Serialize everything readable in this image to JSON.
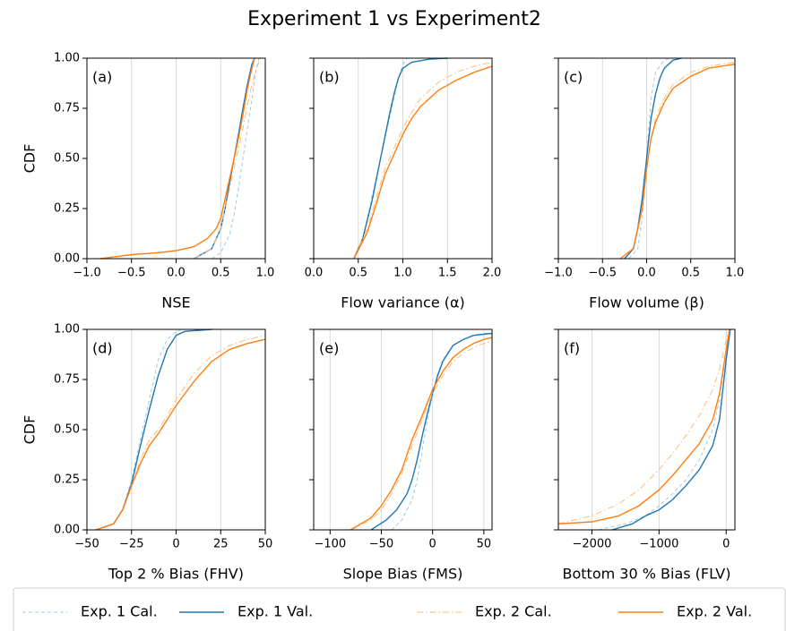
{
  "title": "Experiment 1 vs Experiment2",
  "chart_data": [
    {
      "type": "line",
      "label": "(a)",
      "xlabel": "NSE",
      "ylabel": "CDF",
      "show_ytick_labels": true,
      "grid": "x",
      "xlim": [
        -1,
        1
      ],
      "ylim": [
        0,
        1
      ],
      "xticks": [
        {
          "value": -1,
          "label": "−1.0"
        },
        {
          "value": -0.5,
          "label": "−0.5"
        },
        {
          "value": 0,
          "label": "0.0"
        },
        {
          "value": 0.5,
          "label": "0.5"
        },
        {
          "value": 1,
          "label": "1.0"
        }
      ],
      "yticks": [
        {
          "value": 0,
          "label": "0.00"
        },
        {
          "value": 0.25,
          "label": "0.25"
        },
        {
          "value": 0.5,
          "label": "0.50"
        },
        {
          "value": 0.75,
          "label": "0.75"
        },
        {
          "value": 1,
          "label": "1.00"
        }
      ],
      "series": [
        {
          "name": "Exp. 1 Cal.",
          "color": "#9ecae1",
          "linestyle": "dashed",
          "x": [
            0.4,
            0.5,
            0.6,
            0.65,
            0.7,
            0.75,
            0.8,
            0.85,
            0.9,
            0.93
          ],
          "values": [
            0,
            0.03,
            0.12,
            0.22,
            0.35,
            0.5,
            0.65,
            0.8,
            0.95,
            1
          ]
        },
        {
          "name": "Exp. 1 Val.",
          "color": "#1f77b4",
          "linestyle": "solid",
          "x": [
            0.2,
            0.4,
            0.5,
            0.55,
            0.6,
            0.65,
            0.7,
            0.75,
            0.8,
            0.85,
            0.88
          ],
          "values": [
            0,
            0.05,
            0.15,
            0.25,
            0.38,
            0.5,
            0.62,
            0.75,
            0.87,
            0.97,
            1
          ]
        },
        {
          "name": "Exp. 2 Cal.",
          "color": "#ffbb78",
          "linestyle": "dashdot",
          "x": [
            0.2,
            0.4,
            0.5,
            0.6,
            0.7,
            0.75,
            0.8,
            0.85,
            0.9,
            0.95
          ],
          "values": [
            0,
            0.05,
            0.15,
            0.35,
            0.55,
            0.65,
            0.77,
            0.87,
            0.95,
            1
          ]
        },
        {
          "name": "Exp. 2 Val.",
          "color": "#ff7f0e",
          "linestyle": "solid",
          "x": [
            -0.85,
            -0.5,
            -0.2,
            0,
            0.2,
            0.35,
            0.45,
            0.5,
            0.55,
            0.6,
            0.65,
            0.7,
            0.75,
            0.8,
            0.85,
            0.88
          ],
          "values": [
            0,
            0.02,
            0.03,
            0.04,
            0.06,
            0.1,
            0.15,
            0.2,
            0.3,
            0.4,
            0.5,
            0.6,
            0.72,
            0.85,
            0.95,
            1
          ]
        }
      ]
    },
    {
      "type": "line",
      "label": "(b)",
      "xlabel": "Flow variance (α)",
      "show_ytick_labels": false,
      "grid": "x",
      "xlim": [
        0,
        2
      ],
      "ylim": [
        0,
        1
      ],
      "xticks": [
        {
          "value": 0,
          "label": "0.0"
        },
        0.5,
        {
          "value": 1,
          "label": "1.0"
        },
        1.5,
        {
          "value": 2,
          "label": "2.0"
        }
      ],
      "yticks": [
        0,
        0.25,
        0.5,
        0.75,
        1
      ],
      "series": [
        {
          "name": "Exp. 1 Cal.",
          "color": "#9ecae1",
          "linestyle": "dashed",
          "x": [
            0.45,
            0.55,
            0.65,
            0.75,
            0.85,
            0.9,
            0.95,
            1.0,
            1.05
          ],
          "values": [
            0,
            0.1,
            0.3,
            0.5,
            0.7,
            0.8,
            0.9,
            0.97,
            1
          ]
        },
        {
          "name": "Exp. 1 Val.",
          "color": "#1f77b4",
          "linestyle": "solid",
          "x": [
            0.45,
            0.55,
            0.65,
            0.75,
            0.85,
            0.9,
            0.95,
            1.0,
            1.1,
            1.3,
            1.5
          ],
          "values": [
            0,
            0.1,
            0.28,
            0.5,
            0.72,
            0.82,
            0.9,
            0.95,
            0.98,
            0.995,
            1
          ]
        },
        {
          "name": "Exp. 2 Cal.",
          "color": "#ffbb78",
          "linestyle": "dashdot",
          "x": [
            0.45,
            0.6,
            0.7,
            0.8,
            0.9,
            1.0,
            1.1,
            1.2,
            1.4,
            1.6,
            1.8,
            2.0
          ],
          "values": [
            0,
            0.15,
            0.3,
            0.45,
            0.55,
            0.65,
            0.73,
            0.8,
            0.88,
            0.93,
            0.96,
            0.98
          ]
        },
        {
          "name": "Exp. 2 Val.",
          "color": "#ff7f0e",
          "linestyle": "solid",
          "x": [
            0.45,
            0.6,
            0.7,
            0.8,
            0.9,
            1.0,
            1.1,
            1.2,
            1.4,
            1.6,
            1.8,
            2.0
          ],
          "values": [
            0,
            0.13,
            0.27,
            0.42,
            0.52,
            0.62,
            0.7,
            0.76,
            0.84,
            0.89,
            0.93,
            0.96
          ]
        }
      ]
    },
    {
      "type": "line",
      "label": "(c)",
      "xlabel": "Flow volume (β)",
      "show_ytick_labels": false,
      "grid": "x",
      "xlim": [
        -1,
        1
      ],
      "ylim": [
        0,
        1
      ],
      "xticks": [
        {
          "value": -1,
          "label": "−1.0"
        },
        {
          "value": -0.5,
          "label": "−0.5"
        },
        {
          "value": 0,
          "label": "0.0"
        },
        0.5,
        {
          "value": 1,
          "label": "1.0"
        }
      ],
      "yticks": [
        0,
        0.25,
        0.5,
        0.75,
        1
      ],
      "series": [
        {
          "name": "Exp. 1 Cal.",
          "color": "#9ecae1",
          "linestyle": "dashed",
          "x": [
            -0.2,
            -0.1,
            -0.05,
            0,
            0.05,
            0.1,
            0.2,
            0.3
          ],
          "values": [
            0,
            0.05,
            0.2,
            0.5,
            0.8,
            0.93,
            0.99,
            1
          ]
        },
        {
          "name": "Exp. 1 Val.",
          "color": "#1f77b4",
          "linestyle": "solid",
          "x": [
            -0.25,
            -0.15,
            -0.1,
            -0.05,
            0,
            0.05,
            0.1,
            0.15,
            0.2,
            0.3,
            0.4
          ],
          "values": [
            0,
            0.05,
            0.15,
            0.3,
            0.5,
            0.7,
            0.82,
            0.9,
            0.95,
            0.99,
            1
          ]
        },
        {
          "name": "Exp. 2 Cal.",
          "color": "#ffbb78",
          "linestyle": "dashdot",
          "x": [
            -0.3,
            -0.15,
            -0.05,
            0,
            0.05,
            0.1,
            0.2,
            0.3,
            0.5,
            0.7,
            1.0
          ],
          "values": [
            0,
            0.05,
            0.25,
            0.45,
            0.6,
            0.7,
            0.8,
            0.87,
            0.93,
            0.96,
            0.98
          ]
        },
        {
          "name": "Exp. 2 Val.",
          "color": "#ff7f0e",
          "linestyle": "solid",
          "x": [
            -0.3,
            -0.15,
            -0.05,
            0,
            0.05,
            0.1,
            0.2,
            0.3,
            0.5,
            0.7,
            1.0
          ],
          "values": [
            0,
            0.05,
            0.25,
            0.45,
            0.6,
            0.68,
            0.78,
            0.85,
            0.91,
            0.95,
            0.97
          ]
        }
      ]
    },
    {
      "type": "line",
      "label": "(d)",
      "xlabel": "Top 2 % Bias (FHV)",
      "ylabel": "CDF",
      "show_ytick_labels": true,
      "grid": "x",
      "xlim": [
        -50,
        50
      ],
      "ylim": [
        0,
        1
      ],
      "xticks": [
        {
          "value": -50,
          "label": "−50"
        },
        {
          "value": -25,
          "label": "−25"
        },
        0,
        25,
        50
      ],
      "yticks": [
        {
          "value": 0,
          "label": "0.00"
        },
        {
          "value": 0.25,
          "label": "0.25"
        },
        {
          "value": 0.5,
          "label": "0.50"
        },
        {
          "value": 0.75,
          "label": "0.75"
        },
        {
          "value": 1,
          "label": "1.00"
        }
      ],
      "series": [
        {
          "name": "Exp. 1 Cal.",
          "color": "#9ecae1",
          "linestyle": "dashed",
          "x": [
            -45,
            -35,
            -30,
            -25,
            -20,
            -15,
            -10,
            -5,
            0,
            5
          ],
          "values": [
            0,
            0.03,
            0.1,
            0.25,
            0.45,
            0.65,
            0.85,
            0.95,
            0.99,
            1
          ]
        },
        {
          "name": "Exp. 1 Val.",
          "color": "#1f77b4",
          "linestyle": "solid",
          "x": [
            -45,
            -35,
            -30,
            -25,
            -20,
            -15,
            -10,
            -5,
            0,
            5,
            20
          ],
          "values": [
            0,
            0.03,
            0.1,
            0.23,
            0.42,
            0.6,
            0.77,
            0.9,
            0.97,
            0.99,
            1
          ]
        },
        {
          "name": "Exp. 2 Cal.",
          "color": "#ffbb78",
          "linestyle": "dashdot",
          "x": [
            -45,
            -35,
            -30,
            -25,
            -20,
            -15,
            -10,
            -5,
            0,
            10,
            20,
            30,
            40,
            50
          ],
          "values": [
            0,
            0.03,
            0.1,
            0.22,
            0.35,
            0.45,
            0.5,
            0.57,
            0.65,
            0.78,
            0.87,
            0.92,
            0.95,
            0.97
          ]
        },
        {
          "name": "Exp. 2 Val.",
          "color": "#ff7f0e",
          "linestyle": "solid",
          "x": [
            -45,
            -35,
            -30,
            -25,
            -20,
            -15,
            -10,
            -5,
            0,
            10,
            20,
            30,
            40,
            50
          ],
          "values": [
            0,
            0.03,
            0.1,
            0.22,
            0.33,
            0.42,
            0.48,
            0.55,
            0.62,
            0.74,
            0.84,
            0.9,
            0.93,
            0.95
          ]
        }
      ]
    },
    {
      "type": "line",
      "label": "(e)",
      "xlabel": "Slope Bias (FMS)",
      "show_ytick_labels": false,
      "grid": "x",
      "xlim": [
        -116,
        58
      ],
      "ylim": [
        0,
        1
      ],
      "xticks": [
        {
          "value": -100,
          "label": "−100"
        },
        {
          "value": -50,
          "label": "−50"
        },
        0,
        50
      ],
      "yticks": [
        0,
        0.25,
        0.5,
        0.75,
        1
      ],
      "series": [
        {
          "name": "Exp. 1 Cal.",
          "color": "#9ecae1",
          "linestyle": "dashed",
          "x": [
            -40,
            -30,
            -20,
            -15,
            -10,
            -5,
            0,
            5,
            10,
            20,
            30,
            40,
            50,
            58
          ],
          "values": [
            0,
            0.05,
            0.15,
            0.25,
            0.4,
            0.55,
            0.68,
            0.78,
            0.85,
            0.92,
            0.95,
            0.97,
            0.98,
            0.98
          ]
        },
        {
          "name": "Exp. 1 Val.",
          "color": "#1f77b4",
          "linestyle": "solid",
          "x": [
            -60,
            -45,
            -35,
            -25,
            -20,
            -15,
            -10,
            -5,
            0,
            5,
            10,
            20,
            30,
            40,
            58
          ],
          "values": [
            0,
            0.05,
            0.1,
            0.18,
            0.25,
            0.35,
            0.47,
            0.58,
            0.68,
            0.77,
            0.84,
            0.92,
            0.95,
            0.97,
            0.98
          ]
        },
        {
          "name": "Exp. 2 Cal.",
          "color": "#ffbb78",
          "linestyle": "dashdot",
          "x": [
            -80,
            -60,
            -50,
            -40,
            -30,
            -20,
            -10,
            0,
            10,
            20,
            30,
            40,
            50,
            58
          ],
          "values": [
            0,
            0.05,
            0.1,
            0.18,
            0.28,
            0.42,
            0.55,
            0.68,
            0.77,
            0.84,
            0.88,
            0.91,
            0.93,
            0.94
          ]
        },
        {
          "name": "Exp. 2 Val.",
          "color": "#ff7f0e",
          "linestyle": "solid",
          "x": [
            -80,
            -60,
            -50,
            -40,
            -30,
            -20,
            -10,
            0,
            10,
            20,
            30,
            40,
            50,
            58
          ],
          "values": [
            0,
            0.06,
            0.12,
            0.2,
            0.3,
            0.45,
            0.57,
            0.7,
            0.79,
            0.86,
            0.9,
            0.93,
            0.95,
            0.96
          ]
        }
      ]
    },
    {
      "type": "line",
      "label": "(f)",
      "xlabel": "Bottom 30 % Bias (FLV)",
      "show_ytick_labels": false,
      "grid": "x",
      "xlim": [
        -2500,
        130
      ],
      "ylim": [
        0,
        1
      ],
      "xticks": [
        {
          "value": -2000,
          "label": "−2000"
        },
        {
          "value": -1000,
          "label": "−1000"
        },
        0
      ],
      "yticks": [
        0,
        0.25,
        0.5,
        0.75,
        1
      ],
      "series": [
        {
          "name": "Exp. 1 Cal.",
          "color": "#9ecae1",
          "linestyle": "dashed",
          "x": [
            -1900,
            -1500,
            -1200,
            -1000,
            -800,
            -600,
            -400,
            -200,
            -100,
            0,
            50
          ],
          "values": [
            0,
            0.03,
            0.07,
            0.12,
            0.18,
            0.25,
            0.35,
            0.5,
            0.65,
            0.9,
            1
          ]
        },
        {
          "name": "Exp. 1 Val.",
          "color": "#1f77b4",
          "linestyle": "solid",
          "x": [
            -1700,
            -1400,
            -1200,
            -1000,
            -800,
            -600,
            -400,
            -200,
            -100,
            0,
            60
          ],
          "values": [
            0,
            0.03,
            0.07,
            0.1,
            0.15,
            0.22,
            0.3,
            0.42,
            0.55,
            0.85,
            1
          ]
        },
        {
          "name": "Exp. 2 Cal.",
          "color": "#ffbb78",
          "linestyle": "dashdot",
          "x": [
            -2500,
            -2000,
            -1600,
            -1300,
            -1000,
            -800,
            -600,
            -400,
            -200,
            -100,
            0,
            50
          ],
          "values": [
            0.03,
            0.07,
            0.13,
            0.2,
            0.3,
            0.38,
            0.47,
            0.57,
            0.7,
            0.8,
            0.95,
            1
          ]
        },
        {
          "name": "Exp. 2 Val.",
          "color": "#ff7f0e",
          "linestyle": "solid",
          "x": [
            -2500,
            -2000,
            -1600,
            -1300,
            -1000,
            -800,
            -600,
            -400,
            -200,
            -100,
            0,
            50
          ],
          "values": [
            0.03,
            0.04,
            0.07,
            0.12,
            0.2,
            0.27,
            0.35,
            0.43,
            0.55,
            0.68,
            0.9,
            1
          ]
        }
      ]
    }
  ]
}
